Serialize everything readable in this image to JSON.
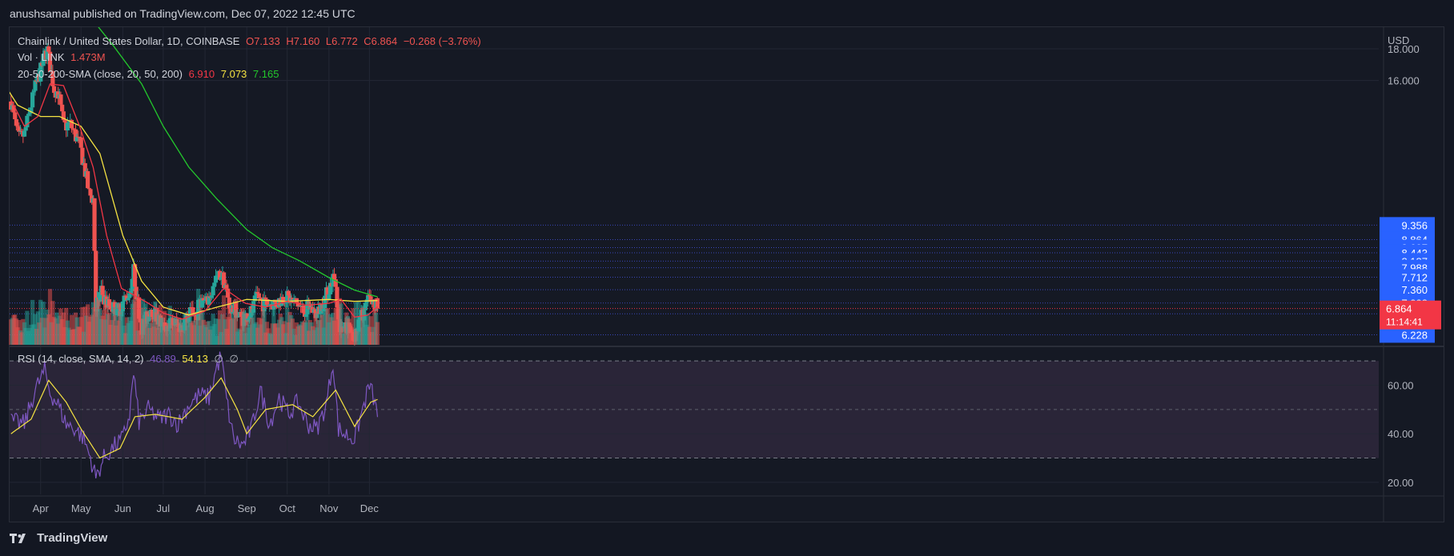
{
  "header": {
    "publisher_line": "anushsamal published on TradingView.com, Dec 07, 2022 12:45 UTC"
  },
  "legend": {
    "symbol": "Chainlink / United States Dollar, 1D, COINBASE",
    "open": "O7.133",
    "high": "H7.160",
    "low": "L6.772",
    "close": "C6.864",
    "change": "−0.268 (−3.76%)",
    "volume_label": "Vol · LINK",
    "volume_value": "1.473M",
    "sma_label": "20-50-200-SMA (close, 20, 50, 200)",
    "sma20_value": "6.910",
    "sma50_value": "7.073",
    "sma200_value": "7.165",
    "rsi_label": "RSI (14, close, SMA, 14, 2)",
    "rsi_value": "46.89",
    "rsi_sma_value": "54.13",
    "rsi_extra1": "∅",
    "rsi_extra2": "∅"
  },
  "footer": {
    "brand": "TradingView"
  },
  "colors": {
    "background": "#151924",
    "grid": "#232734",
    "bull": "#26a69a",
    "bear": "#ef5350",
    "sma20": "#f23645",
    "sma50": "#f5e342",
    "sma200": "#23c72c",
    "rsi_line": "#7e57c2",
    "rsi_sma": "#f5e342",
    "fib_lines": "#3d4bc8",
    "fib_labels": "#2962ff",
    "price_tag": "#f23645"
  },
  "chart_data": [
    {
      "type": "candlestick",
      "symbol": "LINK/USD",
      "title": "Chainlink / United States Dollar, 1D, COINBASE",
      "x_axis_labels": [
        "Apr",
        "May",
        "Jun",
        "Jul",
        "Aug",
        "Sep",
        "Oct",
        "Nov",
        "Dec"
      ],
      "y_axis": {
        "unit": "USD",
        "tick_labels": [
          "18.000",
          "16.000"
        ],
        "scale": "log"
      },
      "y_range": [
        6.0,
        19.5
      ],
      "horizontal_levels": [
        "9.356",
        "8.864",
        "8.607",
        "8.443",
        "8.187",
        "7.988",
        "7.712",
        "7.360",
        "7.008",
        "6.732",
        "6.228"
      ],
      "current_price": "6.864",
      "countdown": "11:14:41",
      "price_path": [
        {
          "date": "2022-03-10",
          "close": 14.8
        },
        {
          "date": "2022-03-13",
          "close": 13.6
        },
        {
          "date": "2022-03-16",
          "close": 12.9
        },
        {
          "date": "2022-03-20",
          "close": 13.1
        },
        {
          "date": "2022-03-24",
          "close": 14.3
        },
        {
          "date": "2022-03-28",
          "close": 15.6
        },
        {
          "date": "2022-04-01",
          "close": 16.6
        },
        {
          "date": "2022-04-04",
          "close": 17.6
        },
        {
          "date": "2022-04-06",
          "close": 17.9
        },
        {
          "date": "2022-04-08",
          "close": 16.9
        },
        {
          "date": "2022-04-11",
          "close": 15.5
        },
        {
          "date": "2022-04-14",
          "close": 15.3
        },
        {
          "date": "2022-04-18",
          "close": 13.5
        },
        {
          "date": "2022-04-23",
          "close": 13.6
        },
        {
          "date": "2022-04-27",
          "close": 13.0
        },
        {
          "date": "2022-04-30",
          "close": 12.6
        },
        {
          "date": "2022-05-04",
          "close": 11.4
        },
        {
          "date": "2022-05-07",
          "close": 10.5
        },
        {
          "date": "2022-05-10",
          "close": 10.3
        },
        {
          "date": "2022-05-12",
          "close": 6.9
        },
        {
          "date": "2022-05-16",
          "close": 7.3
        },
        {
          "date": "2022-05-20",
          "close": 7.0
        },
        {
          "date": "2022-05-25",
          "close": 6.9
        },
        {
          "date": "2022-05-29",
          "close": 6.8
        },
        {
          "date": "2022-06-02",
          "close": 7.1
        },
        {
          "date": "2022-06-06",
          "close": 7.3
        },
        {
          "date": "2022-06-09",
          "close": 7.9
        },
        {
          "date": "2022-06-12",
          "close": 7.0
        },
        {
          "date": "2022-06-15",
          "close": 6.4
        },
        {
          "date": "2022-06-18",
          "close": 6.6
        },
        {
          "date": "2022-06-22",
          "close": 6.9
        },
        {
          "date": "2022-06-27",
          "close": 6.6
        },
        {
          "date": "2022-07-01",
          "close": 6.4
        },
        {
          "date": "2022-07-06",
          "close": 6.5
        },
        {
          "date": "2022-07-10",
          "close": 6.5
        },
        {
          "date": "2022-07-14",
          "close": 6.4
        },
        {
          "date": "2022-07-18",
          "close": 6.6
        },
        {
          "date": "2022-07-22",
          "close": 6.8
        },
        {
          "date": "2022-07-26",
          "close": 6.7
        },
        {
          "date": "2022-07-28",
          "close": 7.1
        },
        {
          "date": "2022-08-02",
          "close": 7.0
        },
        {
          "date": "2022-08-06",
          "close": 7.3
        },
        {
          "date": "2022-08-10",
          "close": 7.7
        },
        {
          "date": "2022-08-13",
          "close": 7.8
        },
        {
          "date": "2022-08-16",
          "close": 7.5
        },
        {
          "date": "2022-08-19",
          "close": 6.9
        },
        {
          "date": "2022-08-24",
          "close": 6.8
        },
        {
          "date": "2022-08-28",
          "close": 6.6
        },
        {
          "date": "2022-09-01",
          "close": 6.7
        },
        {
          "date": "2022-09-05",
          "close": 6.8
        },
        {
          "date": "2022-09-09",
          "close": 7.2
        },
        {
          "date": "2022-09-13",
          "close": 7.0
        },
        {
          "date": "2022-09-18",
          "close": 7.0
        },
        {
          "date": "2022-09-23",
          "close": 7.0
        },
        {
          "date": "2022-09-29",
          "close": 7.2
        },
        {
          "date": "2022-10-03",
          "close": 7.1
        },
        {
          "date": "2022-10-08",
          "close": 7.0
        },
        {
          "date": "2022-10-13",
          "close": 6.8
        },
        {
          "date": "2022-10-18",
          "close": 6.9
        },
        {
          "date": "2022-10-23",
          "close": 6.7
        },
        {
          "date": "2022-10-27",
          "close": 7.0
        },
        {
          "date": "2022-10-31",
          "close": 7.3
        },
        {
          "date": "2022-11-04",
          "close": 7.7
        },
        {
          "date": "2022-11-06",
          "close": 7.5
        },
        {
          "date": "2022-11-08",
          "close": 6.6
        },
        {
          "date": "2022-11-10",
          "close": 6.3
        },
        {
          "date": "2022-11-14",
          "close": 6.4
        },
        {
          "date": "2022-11-18",
          "close": 6.3
        },
        {
          "date": "2022-11-21",
          "close": 6.2
        },
        {
          "date": "2022-11-24",
          "close": 6.6
        },
        {
          "date": "2022-11-28",
          "close": 6.9
        },
        {
          "date": "2022-12-01",
          "close": 7.1
        },
        {
          "date": "2022-12-05",
          "close": 7.0
        },
        {
          "date": "2022-12-07",
          "close": 6.86
        }
      ],
      "sma20_path": [
        {
          "date": "2022-03-10",
          "value": 14.9
        },
        {
          "date": "2022-03-20",
          "value": 13.5
        },
        {
          "date": "2022-03-30",
          "value": 14.0
        },
        {
          "date": "2022-04-08",
          "value": 15.8
        },
        {
          "date": "2022-04-18",
          "value": 15.7
        },
        {
          "date": "2022-04-30",
          "value": 13.5
        },
        {
          "date": "2022-05-10",
          "value": 11.6
        },
        {
          "date": "2022-05-20",
          "value": 9.0
        },
        {
          "date": "2022-05-31",
          "value": 7.4
        },
        {
          "date": "2022-06-10",
          "value": 7.2
        },
        {
          "date": "2022-06-20",
          "value": 7.0
        },
        {
          "date": "2022-07-01",
          "value": 6.75
        },
        {
          "date": "2022-07-15",
          "value": 6.6
        },
        {
          "date": "2022-08-01",
          "value": 6.8
        },
        {
          "date": "2022-08-15",
          "value": 7.4
        },
        {
          "date": "2022-08-31",
          "value": 7.0
        },
        {
          "date": "2022-09-15",
          "value": 6.9
        },
        {
          "date": "2022-10-01",
          "value": 7.05
        },
        {
          "date": "2022-10-15",
          "value": 6.95
        },
        {
          "date": "2022-11-01",
          "value": 7.0
        },
        {
          "date": "2022-11-10",
          "value": 7.1
        },
        {
          "date": "2022-11-20",
          "value": 6.65
        },
        {
          "date": "2022-11-30",
          "value": 6.7
        },
        {
          "date": "2022-12-07",
          "value": 6.91
        }
      ],
      "sma50_path": [
        {
          "date": "2022-03-01",
          "value": 16.3
        },
        {
          "date": "2022-03-15",
          "value": 14.6
        },
        {
          "date": "2022-04-01",
          "value": 14.0
        },
        {
          "date": "2022-04-15",
          "value": 14.0
        },
        {
          "date": "2022-05-01",
          "value": 13.5
        },
        {
          "date": "2022-05-15",
          "value": 12.2
        },
        {
          "date": "2022-06-01",
          "value": 9.0
        },
        {
          "date": "2022-06-15",
          "value": 7.6
        },
        {
          "date": "2022-07-01",
          "value": 6.9
        },
        {
          "date": "2022-07-20",
          "value": 6.7
        },
        {
          "date": "2022-08-10",
          "value": 6.9
        },
        {
          "date": "2022-09-01",
          "value": 7.1
        },
        {
          "date": "2022-10-01",
          "value": 7.05
        },
        {
          "date": "2022-11-01",
          "value": 7.1
        },
        {
          "date": "2022-11-20",
          "value": 7.05
        },
        {
          "date": "2022-12-07",
          "value": 7.07
        }
      ],
      "sma200_path": [
        {
          "date": "2022-05-10",
          "value": 20.0
        },
        {
          "date": "2022-05-25",
          "value": 18.2
        },
        {
          "date": "2022-06-15",
          "value": 15.8
        },
        {
          "date": "2022-07-01",
          "value": 13.5
        },
        {
          "date": "2022-07-20",
          "value": 11.6
        },
        {
          "date": "2022-08-10",
          "value": 10.3
        },
        {
          "date": "2022-09-01",
          "value": 9.2
        },
        {
          "date": "2022-09-20",
          "value": 8.6
        },
        {
          "date": "2022-10-10",
          "value": 8.2
        },
        {
          "date": "2022-11-01",
          "value": 7.7
        },
        {
          "date": "2022-11-20",
          "value": 7.35
        },
        {
          "date": "2022-12-07",
          "value": 7.17
        }
      ]
    },
    {
      "type": "line",
      "title": "RSI (14, close, SMA, 14, 2)",
      "y_axis": {
        "tick_labels": [
          "60.00",
          "40.00",
          "20.00"
        ]
      },
      "y_range": [
        15,
        75
      ],
      "band": [
        30,
        70
      ],
      "midline": 50,
      "series": [
        {
          "name": "RSI",
          "points": [
            {
              "date": "2022-03-10",
              "value": 45
            },
            {
              "date": "2022-03-20",
              "value": 44
            },
            {
              "date": "2022-03-28",
              "value": 58
            },
            {
              "date": "2022-04-04",
              "value": 66
            },
            {
              "date": "2022-04-08",
              "value": 57
            },
            {
              "date": "2022-04-14",
              "value": 52
            },
            {
              "date": "2022-04-20",
              "value": 44
            },
            {
              "date": "2022-04-27",
              "value": 42
            },
            {
              "date": "2022-05-03",
              "value": 38
            },
            {
              "date": "2022-05-08",
              "value": 30
            },
            {
              "date": "2022-05-12",
              "value": 22
            },
            {
              "date": "2022-05-18",
              "value": 30
            },
            {
              "date": "2022-05-26",
              "value": 35
            },
            {
              "date": "2022-06-01",
              "value": 38
            },
            {
              "date": "2022-06-06",
              "value": 48
            },
            {
              "date": "2022-06-09",
              "value": 65
            },
            {
              "date": "2022-06-13",
              "value": 45
            },
            {
              "date": "2022-06-20",
              "value": 50
            },
            {
              "date": "2022-06-28",
              "value": 46
            },
            {
              "date": "2022-07-05",
              "value": 48
            },
            {
              "date": "2022-07-12",
              "value": 44
            },
            {
              "date": "2022-07-20",
              "value": 52
            },
            {
              "date": "2022-07-28",
              "value": 56
            },
            {
              "date": "2022-08-04",
              "value": 55
            },
            {
              "date": "2022-08-10",
              "value": 68
            },
            {
              "date": "2022-08-13",
              "value": 72
            },
            {
              "date": "2022-08-17",
              "value": 54
            },
            {
              "date": "2022-08-22",
              "value": 38
            },
            {
              "date": "2022-08-29",
              "value": 35
            },
            {
              "date": "2022-09-05",
              "value": 43
            },
            {
              "date": "2022-09-11",
              "value": 58
            },
            {
              "date": "2022-09-18",
              "value": 44
            },
            {
              "date": "2022-09-25",
              "value": 55
            },
            {
              "date": "2022-10-02",
              "value": 48
            },
            {
              "date": "2022-10-09",
              "value": 53
            },
            {
              "date": "2022-10-16",
              "value": 44
            },
            {
              "date": "2022-10-23",
              "value": 42
            },
            {
              "date": "2022-10-30",
              "value": 52
            },
            {
              "date": "2022-11-04",
              "value": 70
            },
            {
              "date": "2022-11-08",
              "value": 42
            },
            {
              "date": "2022-11-12",
              "value": 40
            },
            {
              "date": "2022-11-20",
              "value": 38
            },
            {
              "date": "2022-11-25",
              "value": 48
            },
            {
              "date": "2022-12-01",
              "value": 60
            },
            {
              "date": "2022-12-04",
              "value": 55
            },
            {
              "date": "2022-12-07",
              "value": 46.89
            }
          ]
        },
        {
          "name": "SMA",
          "points": [
            {
              "date": "2022-03-10",
              "value": 40
            },
            {
              "date": "2022-03-25",
              "value": 46
            },
            {
              "date": "2022-04-07",
              "value": 62
            },
            {
              "date": "2022-04-20",
              "value": 53
            },
            {
              "date": "2022-05-01",
              "value": 42
            },
            {
              "date": "2022-05-15",
              "value": 30
            },
            {
              "date": "2022-05-30",
              "value": 34
            },
            {
              "date": "2022-06-10",
              "value": 47
            },
            {
              "date": "2022-06-25",
              "value": 48
            },
            {
              "date": "2022-07-15",
              "value": 46
            },
            {
              "date": "2022-08-01",
              "value": 55
            },
            {
              "date": "2022-08-13",
              "value": 63
            },
            {
              "date": "2022-08-25",
              "value": 50
            },
            {
              "date": "2022-09-01",
              "value": 40
            },
            {
              "date": "2022-09-15",
              "value": 50
            },
            {
              "date": "2022-10-05",
              "value": 52
            },
            {
              "date": "2022-10-20",
              "value": 47
            },
            {
              "date": "2022-11-06",
              "value": 58
            },
            {
              "date": "2022-11-20",
              "value": 43
            },
            {
              "date": "2022-12-02",
              "value": 53
            },
            {
              "date": "2022-12-07",
              "value": 54.13
            }
          ]
        }
      ]
    }
  ]
}
